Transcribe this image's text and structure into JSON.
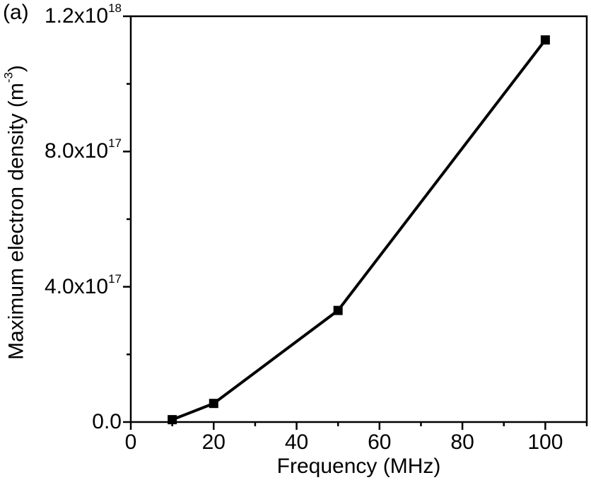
{
  "figure": {
    "panel_label": "(a)",
    "background_color": "#ffffff",
    "foreground_color": "#000000"
  },
  "chart_data": {
    "type": "line",
    "title": "",
    "xlabel": "Frequency (MHz)",
    "ylabel": "Maximum electron density (m⁻³)",
    "ylabel_parts": {
      "pre": "Maximum electron density (m",
      "sup": "-3",
      "post": ")"
    },
    "grid": false,
    "legend": false,
    "series": [
      {
        "name": "maximum-electron-density",
        "marker": "filled-square",
        "color": "#000000",
        "points": [
          {
            "x": 10,
            "y": 7000000000000000.0
          },
          {
            "x": 20,
            "y": 5.5e+16
          },
          {
            "x": 50,
            "y": 3.3e+17
          },
          {
            "x": 100,
            "y": 1.13e+18
          }
        ]
      }
    ],
    "x_axis": {
      "min": 0,
      "max": 110,
      "major_ticks": [
        {
          "value": 0,
          "label": "0"
        },
        {
          "value": 20,
          "label": "20"
        },
        {
          "value": 40,
          "label": "40"
        },
        {
          "value": 60,
          "label": "60"
        },
        {
          "value": 80,
          "label": "80"
        },
        {
          "value": 100,
          "label": "100"
        }
      ],
      "minor_ticks": [
        10,
        30,
        50,
        70,
        90,
        110
      ]
    },
    "y_axis": {
      "min": 0,
      "max": 1.2e+18,
      "major_ticks": [
        {
          "value": 0,
          "mantissa": "0.0",
          "exponent": ""
        },
        {
          "value": 4e+17,
          "mantissa": "4.0x10",
          "exponent": "17"
        },
        {
          "value": 8e+17,
          "mantissa": "8.0x10",
          "exponent": "17"
        },
        {
          "value": 1.2e+18,
          "mantissa": "1.2x10",
          "exponent": "18"
        }
      ],
      "minor_ticks": [
        2e+17,
        6e+17,
        1e+18
      ]
    }
  }
}
